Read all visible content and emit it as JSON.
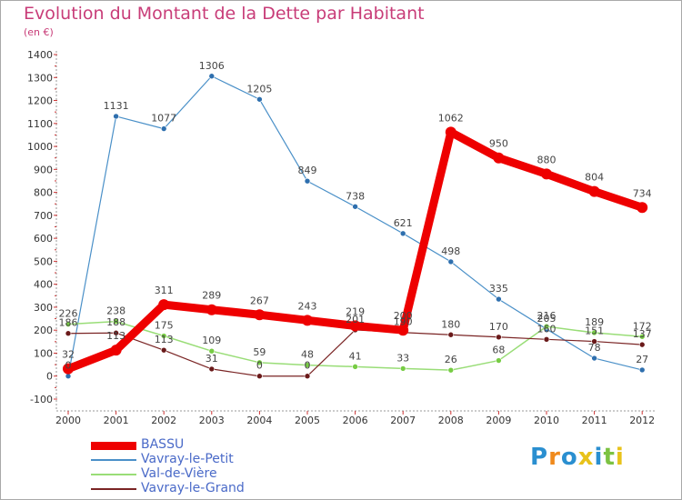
{
  "title": "Evolution du Montant de la Dette par Habitant",
  "unit": "(en €)",
  "logo": {
    "text": "Proxiti",
    "letter_colors": [
      "#2a8fd0",
      "#f08a1c",
      "#2a8fd0",
      "#e8c21a",
      "#2a8fd0",
      "#7cc242",
      "#e8c21a"
    ]
  },
  "chart_data": {
    "type": "line",
    "title": "Evolution du Montant de la Dette par Habitant",
    "ylabel": "(en €)",
    "ylim": [
      -100,
      1400
    ],
    "yticks": [
      -100,
      0,
      100,
      200,
      300,
      400,
      500,
      600,
      700,
      800,
      900,
      1000,
      1100,
      1200,
      1300,
      1400
    ],
    "x": [
      "2000",
      "2001",
      "2002",
      "2003",
      "2004",
      "2005",
      "2006",
      "2007",
      "2008",
      "2009",
      "2010",
      "2011",
      "2012"
    ],
    "grid": false,
    "legend_position": "bottom-left",
    "series": [
      {
        "name": "Vavray-le-Petit",
        "color": "#4a90c8",
        "marker": "#2e6fae",
        "width": 1.2,
        "radius": 3,
        "values": [
          0,
          1131,
          1077,
          1306,
          1205,
          849,
          738,
          621,
          498,
          335,
          205,
          78,
          27
        ]
      },
      {
        "name": "Val-de-Vière",
        "color": "#99dd77",
        "marker": "#77cc44",
        "width": 1.5,
        "radius": 3,
        "values": [
          226,
          238,
          175,
          109,
          59,
          48,
          41,
          33,
          26,
          68,
          216,
          189,
          172
        ]
      },
      {
        "name": "Vavray-le-Grand",
        "color": "#7a2424",
        "marker": "#6a1a1a",
        "width": 1.2,
        "radius": 3,
        "values": [
          186,
          188,
          113,
          31,
          0,
          0,
          201,
          190,
          180,
          170,
          160,
          151,
          137
        ]
      },
      {
        "name": "BASSU",
        "color": "#ee0000",
        "marker": "#ee0000",
        "width": 9,
        "radius": 6,
        "values": [
          32,
          113,
          311,
          289,
          267,
          243,
          219,
          200,
          1062,
          950,
          880,
          804,
          734
        ]
      }
    ],
    "data_labels": [
      {
        "series": "Vavray-le-Petit",
        "values": [
          "0",
          "1131",
          "1077",
          "1306",
          "1205",
          "849",
          "738",
          "621",
          "498",
          "335",
          "205",
          "78",
          "27"
        ]
      },
      {
        "series": "Val-de-Vière",
        "values": [
          "226",
          "238",
          "175",
          "109",
          "59",
          "48",
          "41",
          "33",
          "26",
          "68",
          "216",
          "189",
          "172"
        ]
      },
      {
        "series": "Vavray-le-Grand",
        "values": [
          "186",
          "188",
          "113",
          "31",
          "0",
          "0",
          "201",
          "190",
          "180",
          "170",
          "160",
          "151",
          "137"
        ]
      },
      {
        "series": "BASSU",
        "values": [
          "32",
          "113",
          "311",
          "289",
          "267",
          "243",
          "219",
          "200",
          "1062",
          "950",
          "880",
          "804",
          "734"
        ]
      }
    ],
    "legend": [
      {
        "name": "BASSU",
        "color": "#ee0000",
        "width": 9
      },
      {
        "name": "Vavray-le-Petit",
        "color": "#4a90c8",
        "width": 2
      },
      {
        "name": "Val-de-Vière",
        "color": "#99dd77",
        "width": 2
      },
      {
        "name": "Vavray-le-Grand",
        "color": "#7a2424",
        "width": 2
      }
    ]
  }
}
